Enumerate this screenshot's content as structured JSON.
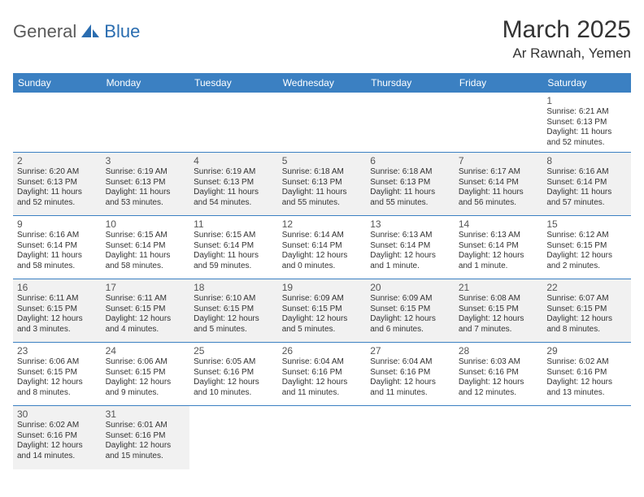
{
  "logo": {
    "text1": "General",
    "text2": "Blue"
  },
  "title": "March 2025",
  "location": "Ar Rawnah, Yemen",
  "columns": [
    "Sunday",
    "Monday",
    "Tuesday",
    "Wednesday",
    "Thursday",
    "Friday",
    "Saturday"
  ],
  "colors": {
    "header_bg": "#3b80c2",
    "header_text": "#ffffff",
    "alt_bg": "#f1f1f1",
    "rule": "#3b80c2",
    "logo_gray": "#5a5a5a",
    "logo_blue": "#2a6db0"
  },
  "weeks": [
    [
      {
        "empty": true
      },
      {
        "empty": true
      },
      {
        "empty": true
      },
      {
        "empty": true
      },
      {
        "empty": true
      },
      {
        "empty": true
      },
      {
        "n": "1",
        "sr": "6:21 AM",
        "ss": "6:13 PM",
        "dl": "11 hours and 52 minutes."
      }
    ],
    [
      {
        "n": "2",
        "sr": "6:20 AM",
        "ss": "6:13 PM",
        "dl": "11 hours and 52 minutes.",
        "alt": true
      },
      {
        "n": "3",
        "sr": "6:19 AM",
        "ss": "6:13 PM",
        "dl": "11 hours and 53 minutes.",
        "alt": true
      },
      {
        "n": "4",
        "sr": "6:19 AM",
        "ss": "6:13 PM",
        "dl": "11 hours and 54 minutes.",
        "alt": true
      },
      {
        "n": "5",
        "sr": "6:18 AM",
        "ss": "6:13 PM",
        "dl": "11 hours and 55 minutes.",
        "alt": true
      },
      {
        "n": "6",
        "sr": "6:18 AM",
        "ss": "6:13 PM",
        "dl": "11 hours and 55 minutes.",
        "alt": true
      },
      {
        "n": "7",
        "sr": "6:17 AM",
        "ss": "6:14 PM",
        "dl": "11 hours and 56 minutes.",
        "alt": true
      },
      {
        "n": "8",
        "sr": "6:16 AM",
        "ss": "6:14 PM",
        "dl": "11 hours and 57 minutes.",
        "alt": true
      }
    ],
    [
      {
        "n": "9",
        "sr": "6:16 AM",
        "ss": "6:14 PM",
        "dl": "11 hours and 58 minutes."
      },
      {
        "n": "10",
        "sr": "6:15 AM",
        "ss": "6:14 PM",
        "dl": "11 hours and 58 minutes."
      },
      {
        "n": "11",
        "sr": "6:15 AM",
        "ss": "6:14 PM",
        "dl": "11 hours and 59 minutes."
      },
      {
        "n": "12",
        "sr": "6:14 AM",
        "ss": "6:14 PM",
        "dl": "12 hours and 0 minutes."
      },
      {
        "n": "13",
        "sr": "6:13 AM",
        "ss": "6:14 PM",
        "dl": "12 hours and 1 minute."
      },
      {
        "n": "14",
        "sr": "6:13 AM",
        "ss": "6:14 PM",
        "dl": "12 hours and 1 minute."
      },
      {
        "n": "15",
        "sr": "6:12 AM",
        "ss": "6:15 PM",
        "dl": "12 hours and 2 minutes."
      }
    ],
    [
      {
        "n": "16",
        "sr": "6:11 AM",
        "ss": "6:15 PM",
        "dl": "12 hours and 3 minutes.",
        "alt": true
      },
      {
        "n": "17",
        "sr": "6:11 AM",
        "ss": "6:15 PM",
        "dl": "12 hours and 4 minutes.",
        "alt": true
      },
      {
        "n": "18",
        "sr": "6:10 AM",
        "ss": "6:15 PM",
        "dl": "12 hours and 5 minutes.",
        "alt": true
      },
      {
        "n": "19",
        "sr": "6:09 AM",
        "ss": "6:15 PM",
        "dl": "12 hours and 5 minutes.",
        "alt": true
      },
      {
        "n": "20",
        "sr": "6:09 AM",
        "ss": "6:15 PM",
        "dl": "12 hours and 6 minutes.",
        "alt": true
      },
      {
        "n": "21",
        "sr": "6:08 AM",
        "ss": "6:15 PM",
        "dl": "12 hours and 7 minutes.",
        "alt": true
      },
      {
        "n": "22",
        "sr": "6:07 AM",
        "ss": "6:15 PM",
        "dl": "12 hours and 8 minutes.",
        "alt": true
      }
    ],
    [
      {
        "n": "23",
        "sr": "6:06 AM",
        "ss": "6:15 PM",
        "dl": "12 hours and 8 minutes."
      },
      {
        "n": "24",
        "sr": "6:06 AM",
        "ss": "6:15 PM",
        "dl": "12 hours and 9 minutes."
      },
      {
        "n": "25",
        "sr": "6:05 AM",
        "ss": "6:16 PM",
        "dl": "12 hours and 10 minutes."
      },
      {
        "n": "26",
        "sr": "6:04 AM",
        "ss": "6:16 PM",
        "dl": "12 hours and 11 minutes."
      },
      {
        "n": "27",
        "sr": "6:04 AM",
        "ss": "6:16 PM",
        "dl": "12 hours and 11 minutes."
      },
      {
        "n": "28",
        "sr": "6:03 AM",
        "ss": "6:16 PM",
        "dl": "12 hours and 12 minutes."
      },
      {
        "n": "29",
        "sr": "6:02 AM",
        "ss": "6:16 PM",
        "dl": "12 hours and 13 minutes."
      }
    ],
    [
      {
        "n": "30",
        "sr": "6:02 AM",
        "ss": "6:16 PM",
        "dl": "12 hours and 14 minutes.",
        "alt": true
      },
      {
        "n": "31",
        "sr": "6:01 AM",
        "ss": "6:16 PM",
        "dl": "12 hours and 15 minutes.",
        "alt": true
      },
      {
        "empty": true
      },
      {
        "empty": true
      },
      {
        "empty": true
      },
      {
        "empty": true
      },
      {
        "empty": true
      }
    ]
  ],
  "labels": {
    "sunrise": "Sunrise: ",
    "sunset": "Sunset: ",
    "daylight": "Daylight: "
  }
}
